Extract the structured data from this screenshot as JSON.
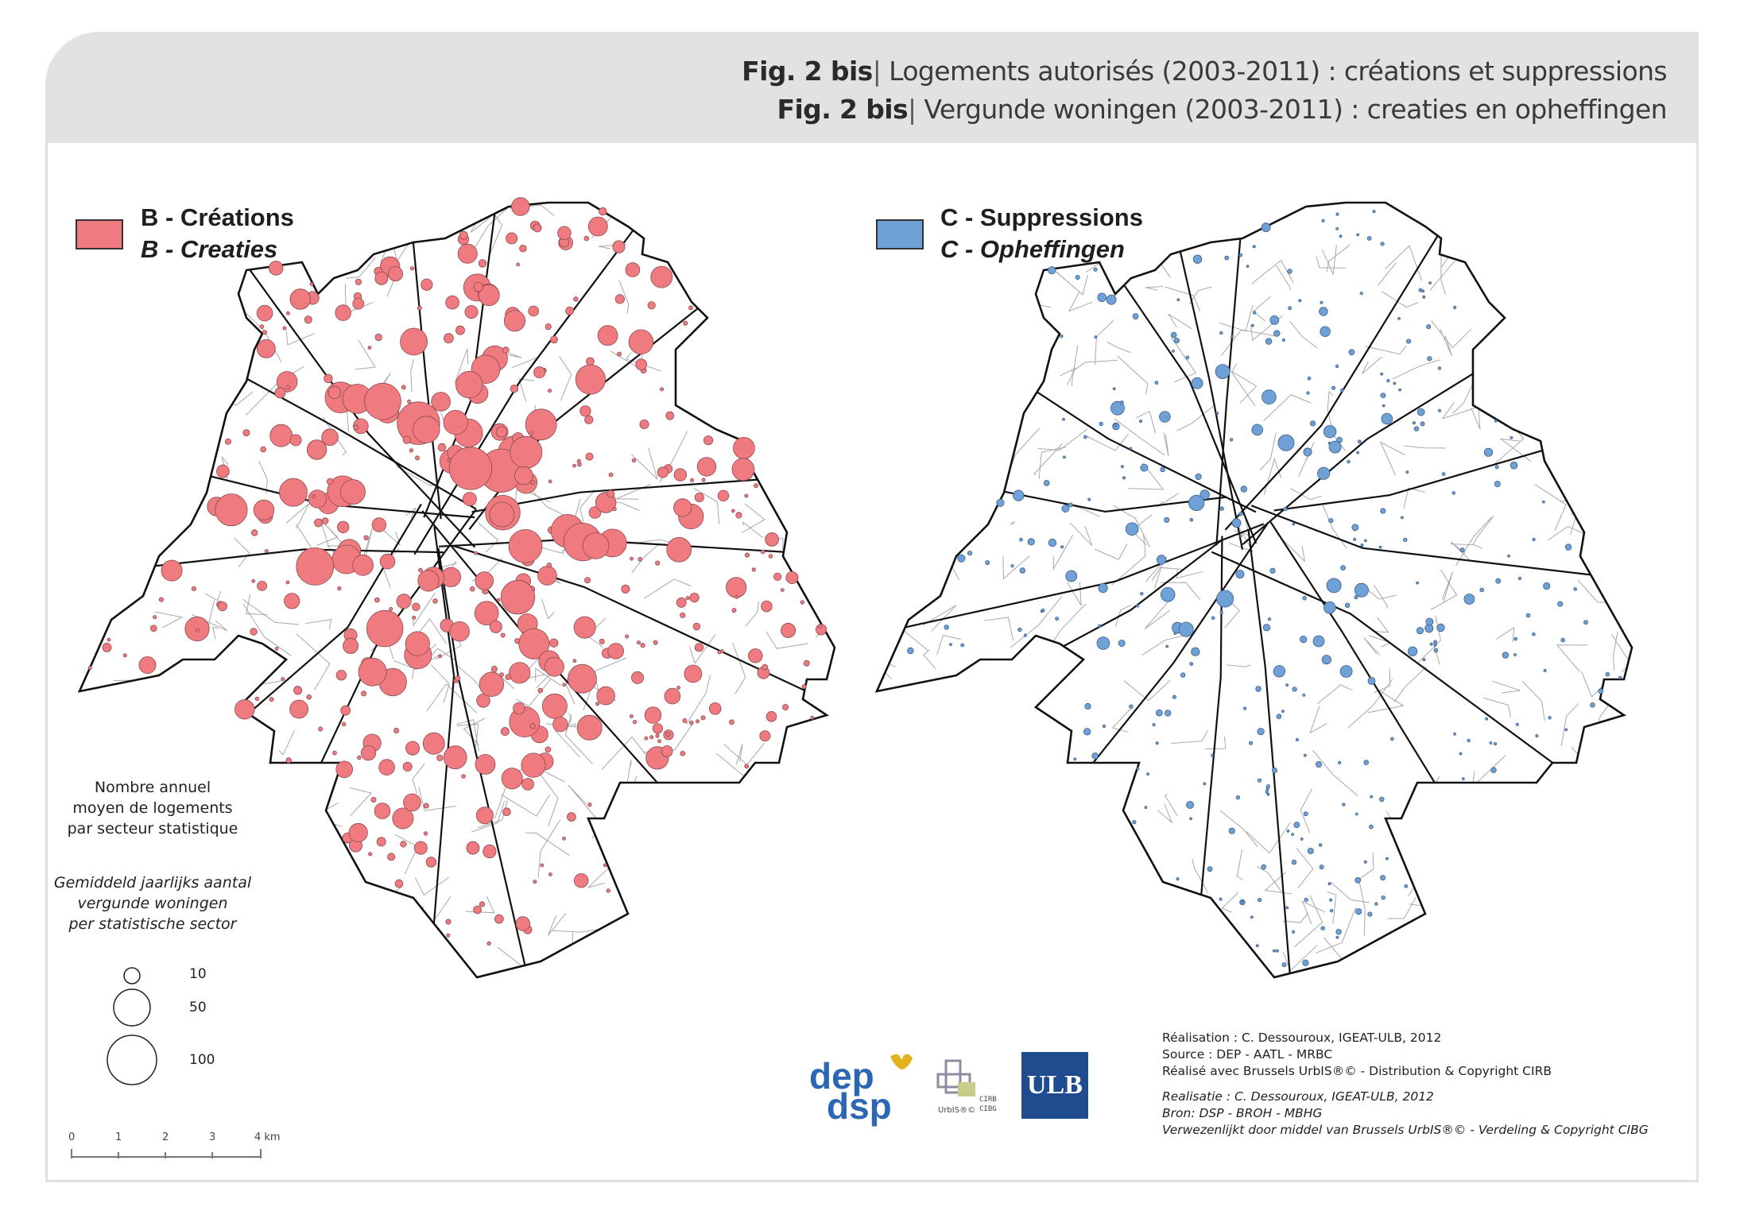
{
  "header": {
    "line1_bold": "Fig. 2 bis",
    "line1_text": "Logements autorisés (2003-2011) : créations et suppressions",
    "line2_bold": "Fig. 2 bis",
    "line2_text": "Vergunde woningen (2003-2011) : creaties en opheffingen"
  },
  "maps": [
    {
      "id": "B",
      "label_fr": "B - Créations",
      "label_nl": "B - Creaties",
      "fill_color": "#ef7b80",
      "stroke_color": "#8a4a4e"
    },
    {
      "id": "C",
      "label_fr": "C - Suppressions",
      "label_nl": "C - Opheffingen",
      "fill_color": "#6fa1d6",
      "stroke_color": "#3b5f8a"
    }
  ],
  "legend": {
    "caption_fr": [
      "Nombre annuel",
      "moyen de logements",
      "par secteur statistique"
    ],
    "caption_nl": [
      "Gemiddeld jaarlijks aantal",
      "vergunde woningen",
      "per statistische sector"
    ],
    "sizes": [
      {
        "value": 10,
        "label": "10"
      },
      {
        "value": 50,
        "label": "50"
      },
      {
        "value": 100,
        "label": "100"
      }
    ]
  },
  "scalebar": {
    "ticks": [
      "0",
      "1",
      "2",
      "3",
      "4 km"
    ]
  },
  "credits": {
    "fr": [
      "Réalisation : C. Dessouroux, IGEAT-ULB, 2012",
      "Source : DEP - AATL - MRBC",
      "Réalisé avec Brussels UrbIS®© - Distribution & Copyright CIRB"
    ],
    "nl": [
      "Realisatie : C. Dessouroux, IGEAT-ULB, 2012",
      "Bron: DSP - BROH - MBHG",
      "Verwezenlijkt door middel van Brussels UrbIS®© - Verdeling & Copyright CIBG"
    ]
  },
  "logos": {
    "dep_top": "dep",
    "dep_bottom": "dsp",
    "urbis_label": "UrbIS®©",
    "cirb": "CIRB",
    "cibg": "CIBG",
    "ulb": "ULB"
  }
}
